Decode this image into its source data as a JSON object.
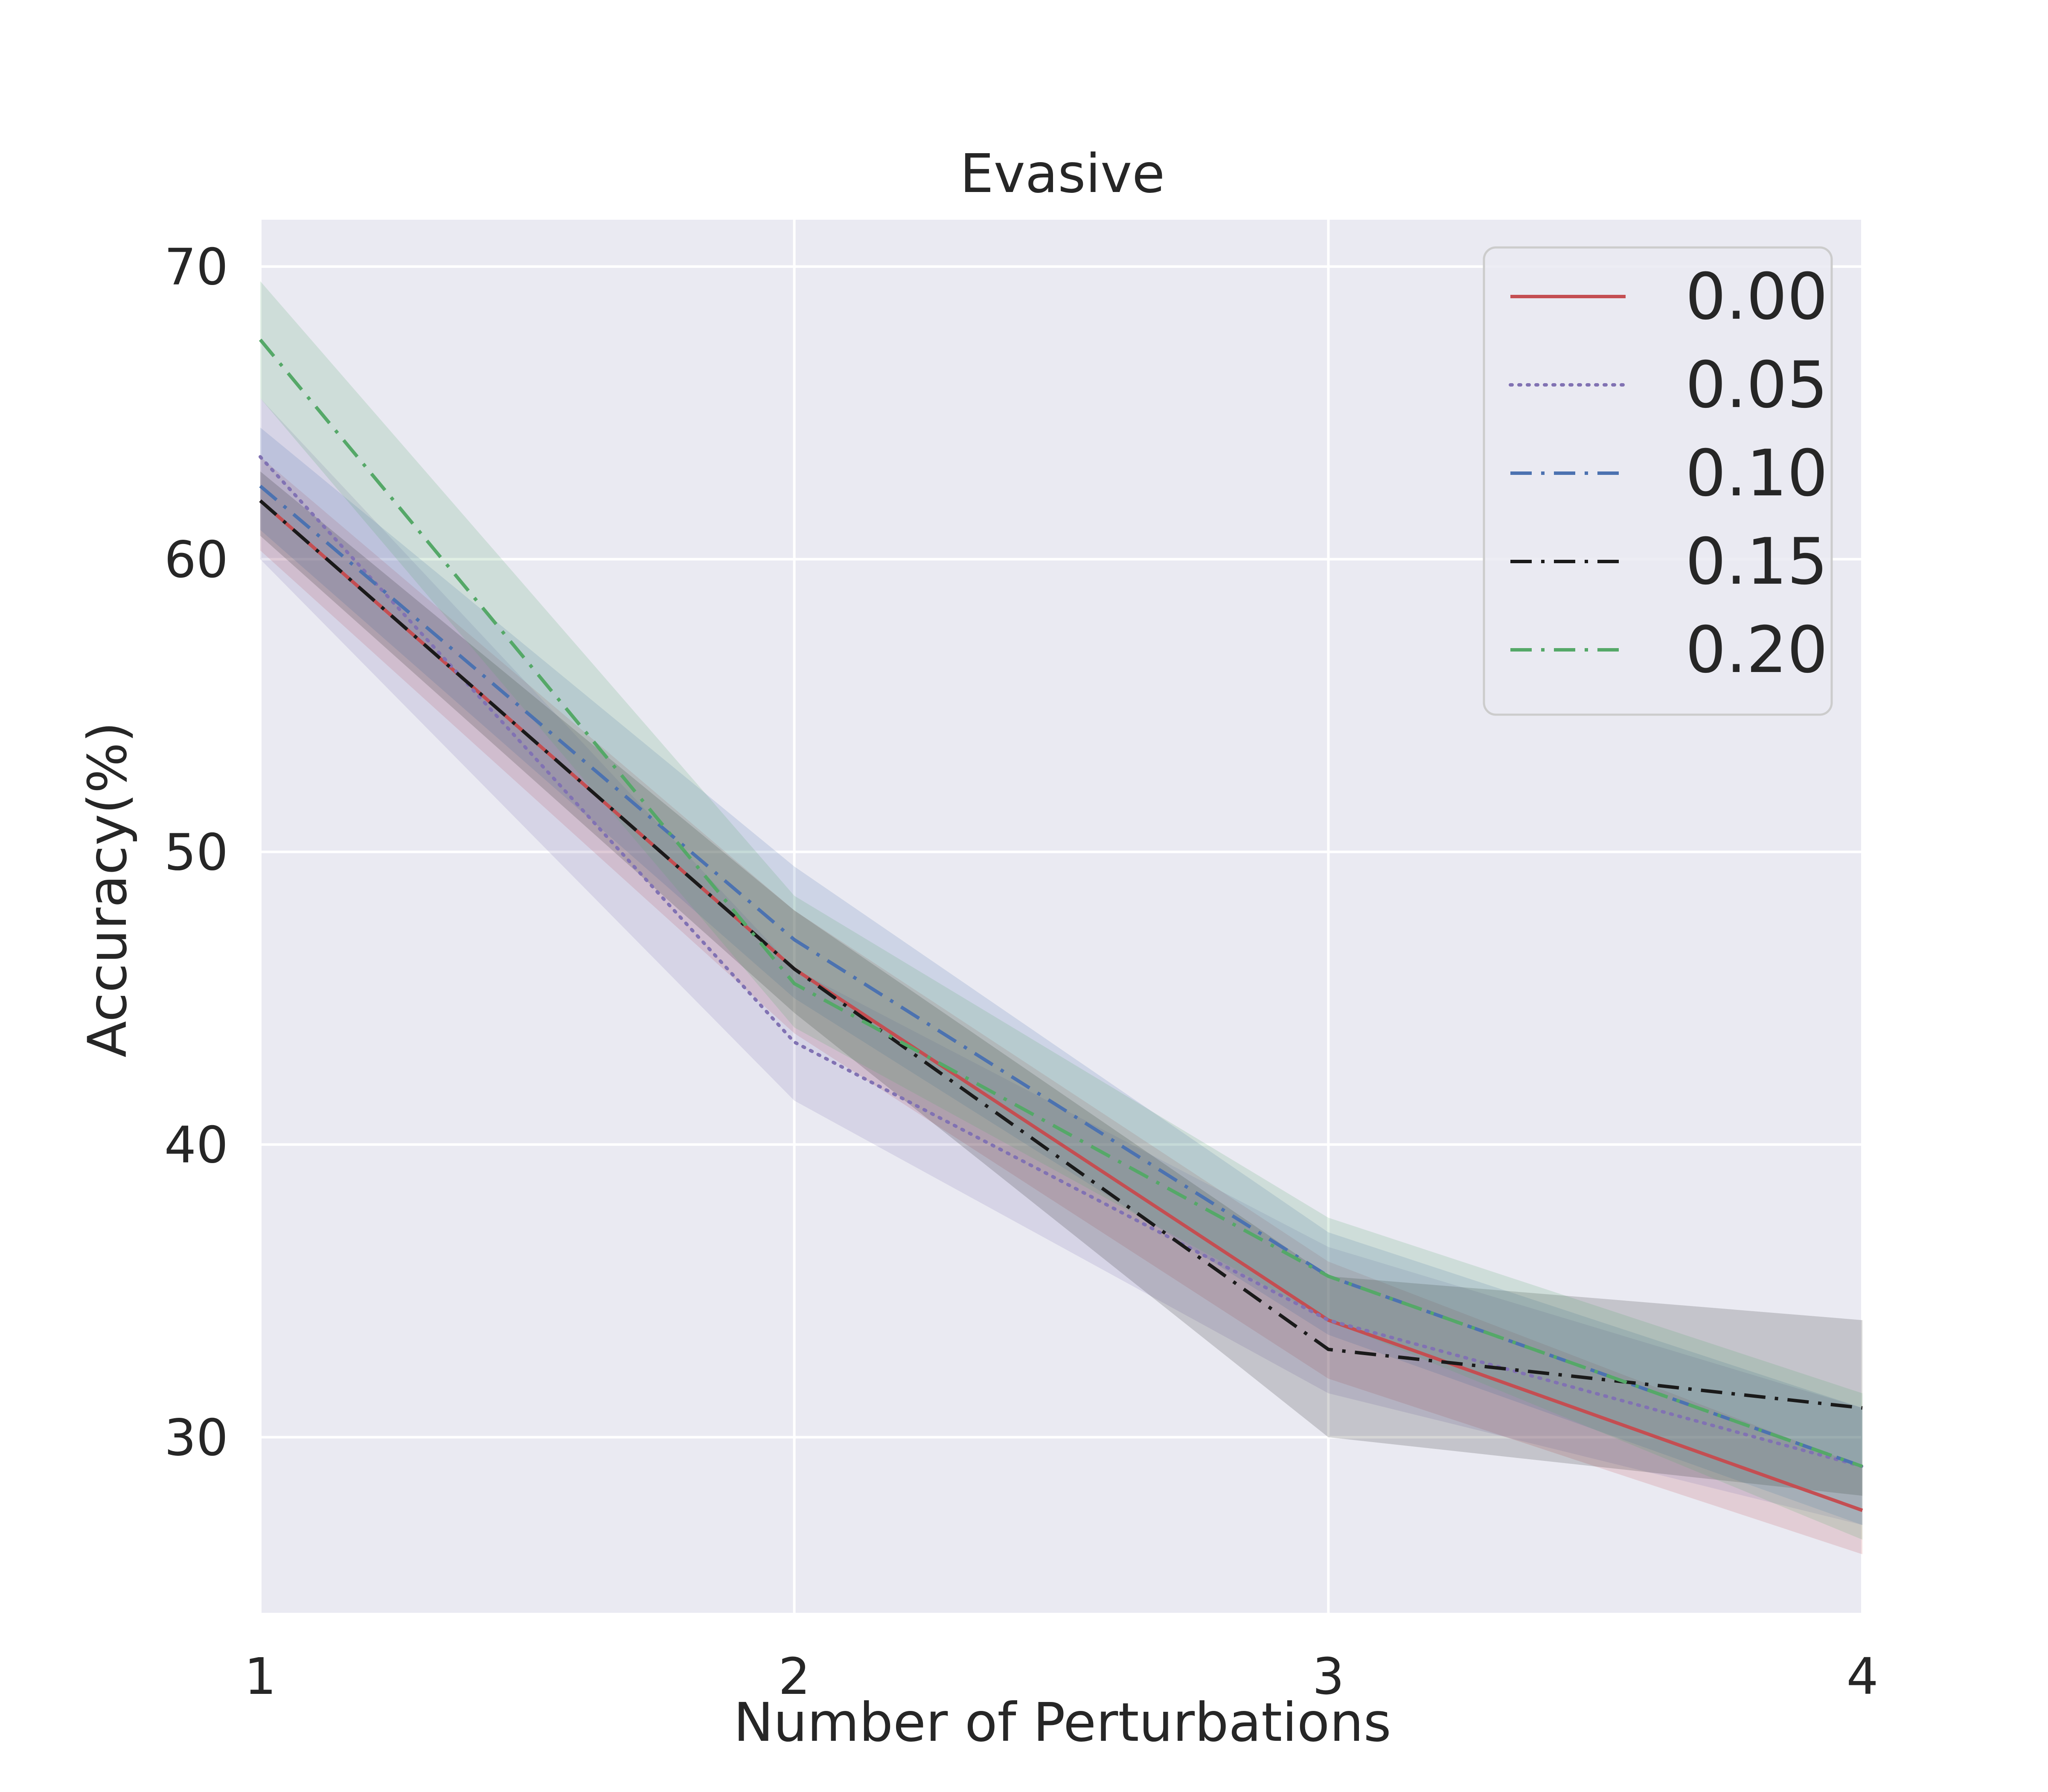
{
  "chart_data": {
    "type": "line",
    "title": "Evasive",
    "xlabel": "Number of Perturbations",
    "ylabel": "Accuracy(%)",
    "x": [
      1,
      2,
      3,
      4
    ],
    "xticks": [
      "1",
      "2",
      "3",
      "4"
    ],
    "yticks": [
      "30",
      "40",
      "50",
      "60",
      "70"
    ],
    "xlim": [
      1,
      4
    ],
    "ylim": [
      24,
      71.6
    ],
    "grid": true,
    "legend_position": "top-right",
    "series": [
      {
        "name": "0.00",
        "values": [
          62.0,
          46.0,
          34.0,
          27.5
        ],
        "lower": [
          60.3,
          43.8,
          32.0,
          26.0
        ],
        "upper": [
          63.5,
          48.0,
          36.0,
          29.0
        ],
        "color": "#c44e52",
        "style": "solid"
      },
      {
        "name": "0.05",
        "values": [
          63.5,
          43.5,
          34.0,
          29.0
        ],
        "lower": [
          60.0,
          41.5,
          31.5,
          27.0
        ],
        "upper": [
          65.5,
          46.0,
          36.5,
          31.0
        ],
        "color": "#8172b3",
        "style": "dotted"
      },
      {
        "name": "0.10",
        "values": [
          62.5,
          47.0,
          35.5,
          29.0
        ],
        "lower": [
          61.0,
          45.0,
          33.5,
          27.0
        ],
        "upper": [
          64.5,
          49.5,
          37.0,
          31.0
        ],
        "color": "#4c72b0",
        "style": "dashdot"
      },
      {
        "name": "0.15",
        "values": [
          62.0,
          46.0,
          33.0,
          31.0
        ],
        "lower": [
          60.8,
          44.5,
          30.0,
          28.0
        ],
        "upper": [
          63.0,
          48.0,
          35.5,
          34.0
        ],
        "color": "#1a1a1a",
        "style": "dashdot"
      },
      {
        "name": "0.20",
        "values": [
          67.5,
          45.5,
          35.5,
          29.0
        ],
        "lower": [
          65.5,
          44.0,
          34.0,
          26.5
        ],
        "upper": [
          69.5,
          48.5,
          37.5,
          31.5
        ],
        "color": "#55a868",
        "style": "dashdot"
      }
    ]
  }
}
